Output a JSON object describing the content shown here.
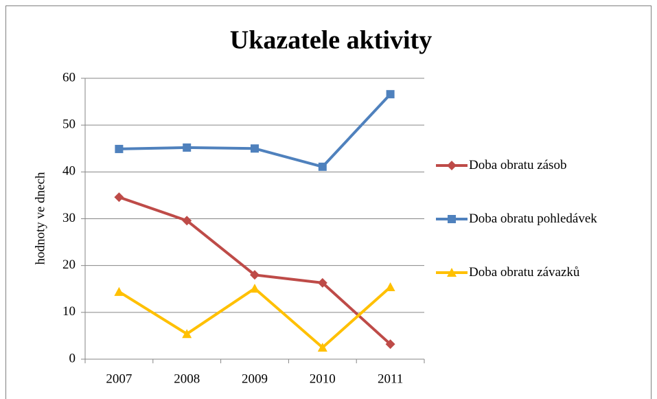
{
  "chart_data": {
    "type": "line",
    "title": "Ukazatele aktivity",
    "y_label": "hodnoty ve dnech",
    "categories": [
      "2007",
      "2008",
      "2009",
      "2010",
      "2011"
    ],
    "series": [
      {
        "name": "Doba obratu zásob",
        "color": "#be4b48",
        "marker": "diamond",
        "values": [
          34.6,
          29.6,
          18.0,
          16.3,
          3.2
        ]
      },
      {
        "name": "Doba obratu pohledávek",
        "color": "#4f81bd",
        "marker": "square",
        "values": [
          44.9,
          45.2,
          45.0,
          41.1,
          56.6
        ]
      },
      {
        "name": "Doba obratu závazků",
        "color": "#ffc000",
        "marker": "triangle",
        "values": [
          14.4,
          5.4,
          15.1,
          2.5,
          15.4
        ]
      }
    ],
    "ylim": [
      0,
      60
    ],
    "yticks": [
      0,
      10,
      20,
      30,
      40,
      50,
      60
    ],
    "grid": true,
    "legend": "right"
  }
}
